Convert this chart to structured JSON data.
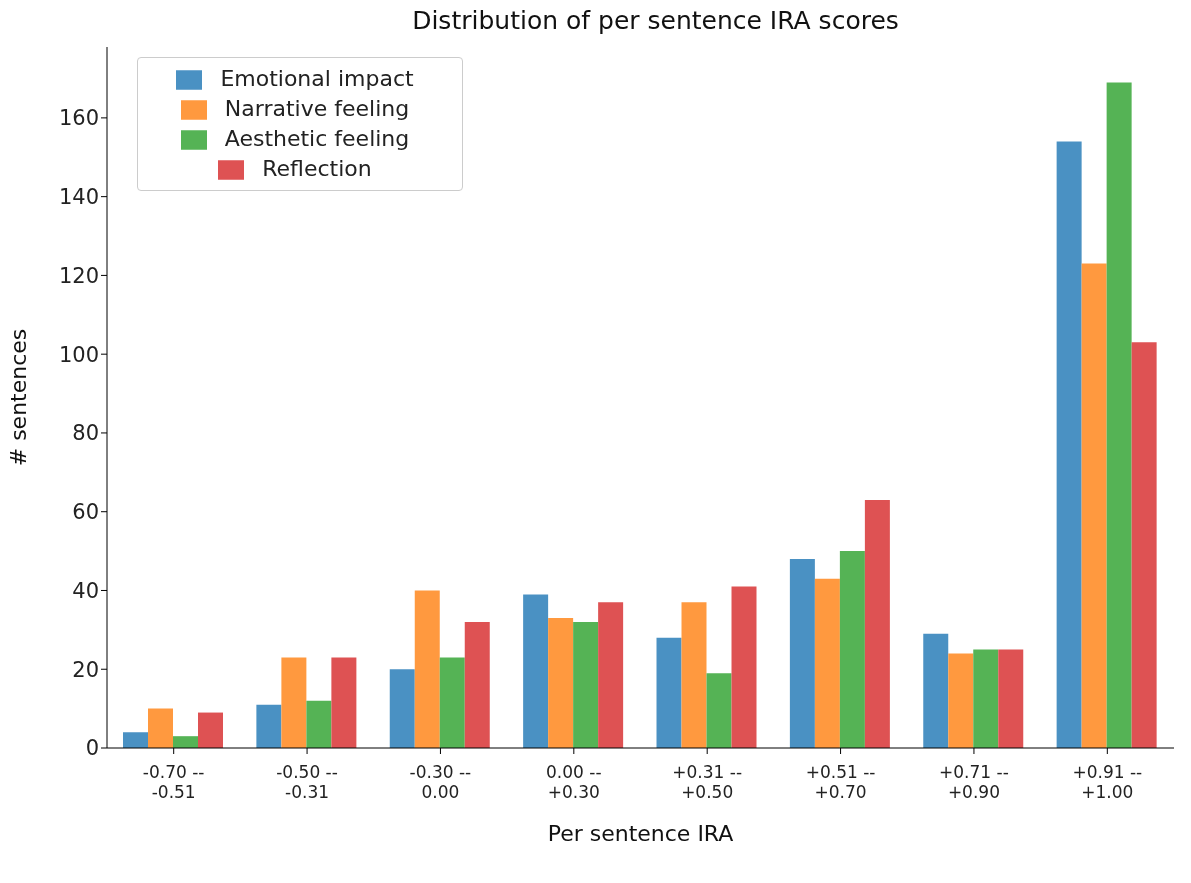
{
  "chart_data": {
    "type": "bar",
    "title": "Distribution of per sentence IRA scores",
    "xlabel": "Per sentence IRA",
    "ylabel": "# sentences",
    "categories": [
      "-0.70 --\n-0.51",
      "-0.50 --\n-0.31",
      "-0.30 --\n0.00",
      "0.00 --\n+0.30",
      "+0.31 --\n+0.50",
      "+0.51 --\n+0.70",
      "+0.71 --\n+0.90",
      "+0.91 --\n+1.00"
    ],
    "series": [
      {
        "name": "Emotional impact",
        "color": "#4a91c3",
        "values": [
          4,
          11,
          20,
          39,
          28,
          48,
          29,
          154
        ]
      },
      {
        "name": "Narrative feeling",
        "color": "#ff993f",
        "values": [
          10,
          23,
          40,
          33,
          37,
          43,
          24,
          123
        ]
      },
      {
        "name": "Aesthetic feeling",
        "color": "#55b355",
        "values": [
          3,
          12,
          23,
          32,
          19,
          50,
          25,
          169
        ]
      },
      {
        "name": "Reflection",
        "color": "#de5253",
        "values": [
          9,
          23,
          32,
          37,
          41,
          63,
          25,
          103
        ]
      }
    ],
    "ylim": [
      0,
      178
    ],
    "yticks": [
      0,
      20,
      40,
      60,
      80,
      100,
      120,
      140,
      160
    ],
    "grid": false,
    "legend": "top left"
  }
}
